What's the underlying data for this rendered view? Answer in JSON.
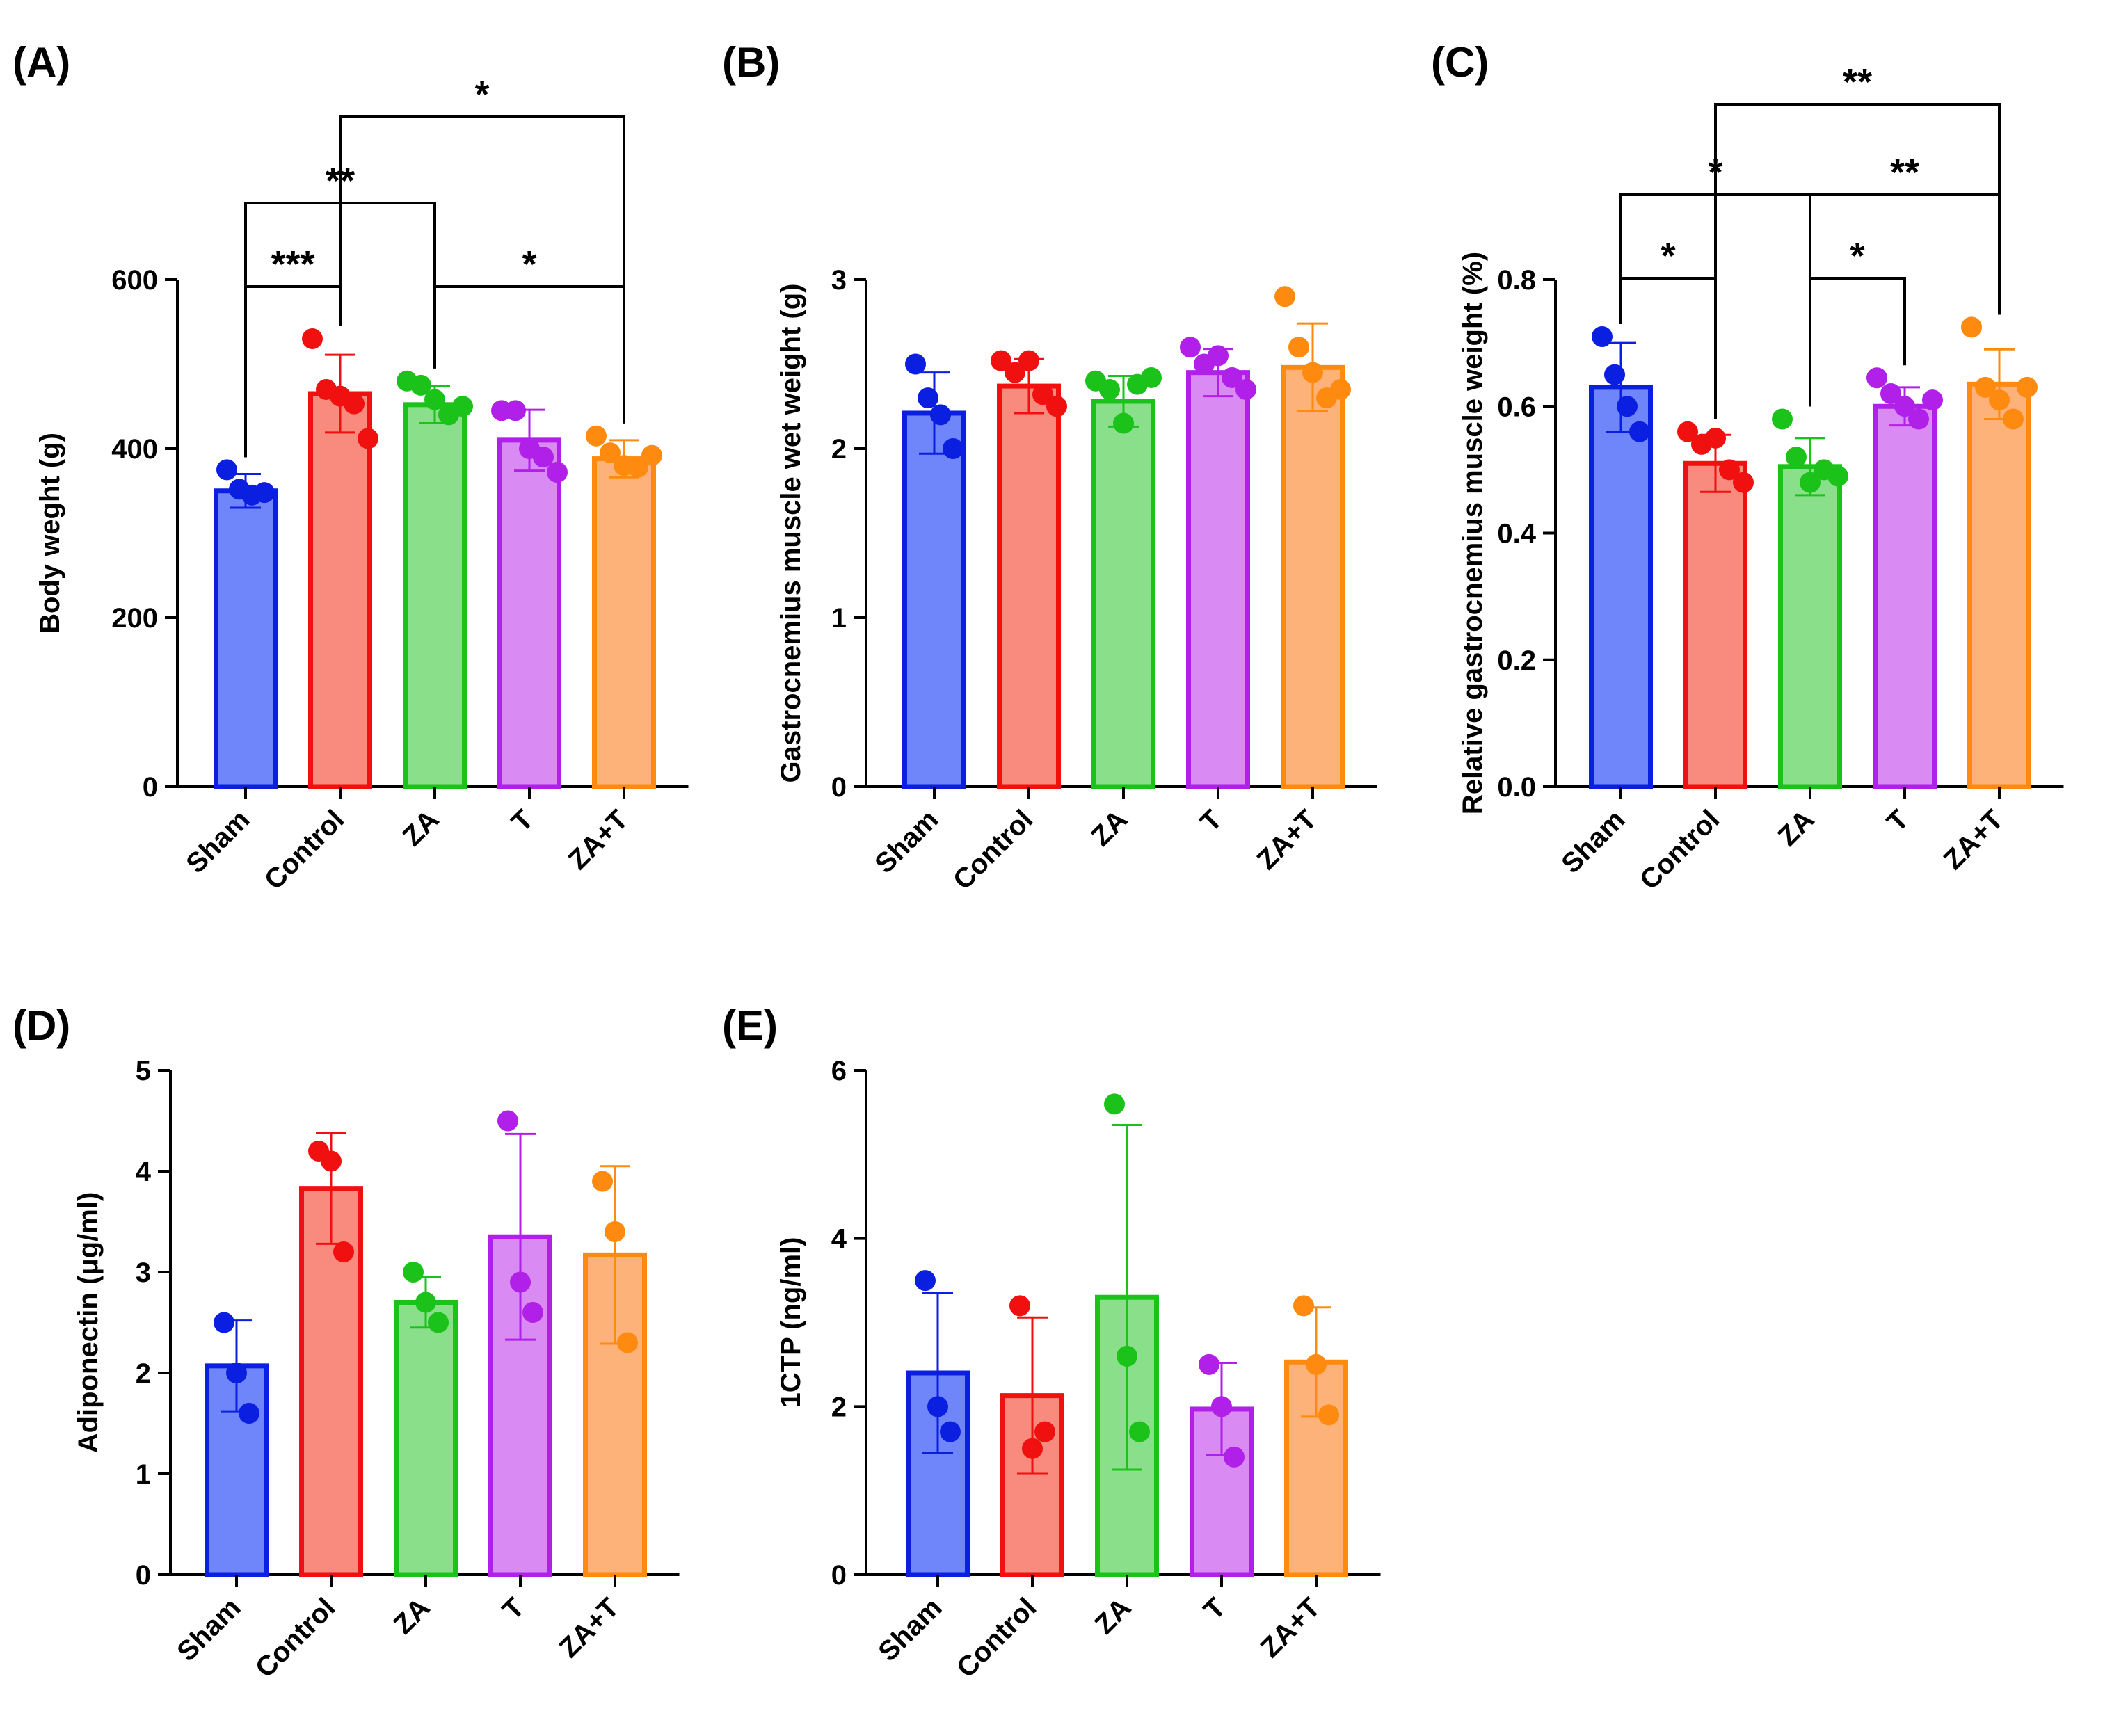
{
  "colors": {
    "Sham": {
      "stroke": "#0b1fe0",
      "fill": "#6f86fb"
    },
    "Control": {
      "stroke": "#f01010",
      "fill": "#f98a7e"
    },
    "ZA": {
      "stroke": "#1ac21a",
      "fill": "#8ae08a"
    },
    "T": {
      "stroke": "#b020e8",
      "fill": "#d98af3"
    },
    "ZA+T": {
      "stroke": "#ff8a10",
      "fill": "#fdb27a"
    }
  },
  "chart_data": [
    {
      "id": "A",
      "panel_label": "(A)",
      "type": "bar",
      "ylabel": "Body weght (g)",
      "ylim": [
        0,
        600
      ],
      "yticks": [
        0,
        200,
        400,
        600
      ],
      "tick_labels": [
        "0",
        "200",
        "400",
        "600"
      ],
      "categories": [
        "Sham",
        "Control",
        "ZA",
        "T",
        "ZA+T"
      ],
      "values": [
        350,
        465,
        452,
        410,
        388
      ],
      "errors": [
        20,
        46,
        22,
        36,
        22
      ],
      "points": [
        [
          375,
          352,
          345,
          348
        ],
        [
          530,
          470,
          462,
          453,
          412
        ],
        [
          480,
          475,
          458,
          440,
          450
        ],
        [
          445,
          445,
          400,
          390,
          372
        ],
        [
          415,
          395,
          380,
          378,
          392
        ]
      ],
      "significance": [
        {
          "from": 0,
          "to": 1,
          "level": 1,
          "label": "***"
        },
        {
          "from": 2,
          "to": 4,
          "level": 1,
          "label": "*"
        },
        {
          "from": 0,
          "to": 2,
          "level": 2,
          "label": "**"
        },
        {
          "from": 1,
          "to": 4,
          "level": 3,
          "label": "*"
        }
      ]
    },
    {
      "id": "B",
      "panel_label": "(B)",
      "type": "bar",
      "ylabel": "Gastrocnemius muscle wet weight (g)",
      "ylim": [
        0,
        3
      ],
      "yticks": [
        0,
        1,
        2,
        3
      ],
      "tick_labels": [
        "0",
        "1",
        "2",
        "3"
      ],
      "categories": [
        "Sham",
        "Control",
        "ZA",
        "T",
        "ZA+T"
      ],
      "values": [
        2.21,
        2.37,
        2.28,
        2.45,
        2.48
      ],
      "errors": [
        0.24,
        0.16,
        0.15,
        0.14,
        0.26
      ],
      "points": [
        [
          2.5,
          2.3,
          2.2,
          2.0
        ],
        [
          2.52,
          2.45,
          2.52,
          2.32,
          2.25
        ],
        [
          2.4,
          2.35,
          2.15,
          2.38,
          2.42
        ],
        [
          2.6,
          2.5,
          2.55,
          2.42,
          2.35
        ],
        [
          2.9,
          2.6,
          2.45,
          2.3,
          2.35
        ]
      ],
      "significance": []
    },
    {
      "id": "C",
      "panel_label": "(C)",
      "type": "bar",
      "ylabel": "Relative gastrocnemius muscle weight (%)",
      "ylim": [
        0,
        0.8
      ],
      "yticks": [
        0,
        0.2,
        0.4,
        0.6,
        0.8
      ],
      "tick_labels": [
        "0.0",
        "0.2",
        "0.4",
        "0.6",
        "0.8"
      ],
      "categories": [
        "Sham",
        "Control",
        "ZA",
        "T",
        "ZA+T"
      ],
      "values": [
        0.63,
        0.51,
        0.505,
        0.6,
        0.635
      ],
      "errors": [
        0.07,
        0.045,
        0.045,
        0.03,
        0.055
      ],
      "points": [
        [
          0.71,
          0.65,
          0.6,
          0.56
        ],
        [
          0.56,
          0.54,
          0.55,
          0.5,
          0.48
        ],
        [
          0.58,
          0.52,
          0.48,
          0.5,
          0.49
        ],
        [
          0.645,
          0.62,
          0.6,
          0.58,
          0.61
        ],
        [
          0.725,
          0.63,
          0.61,
          0.58,
          0.63
        ]
      ],
      "significance": [
        {
          "from": 0,
          "to": 1,
          "level": 1,
          "label": "*"
        },
        {
          "from": 2,
          "to": 3,
          "level": 1,
          "label": "*"
        },
        {
          "from": 0,
          "to": 2,
          "level": 2,
          "label": "*"
        },
        {
          "from": 2,
          "to": 4,
          "level": 2,
          "label": "**"
        },
        {
          "from": 1,
          "to": 4,
          "level": 3,
          "label": "**"
        }
      ]
    },
    {
      "id": "D",
      "panel_label": "(D)",
      "type": "bar",
      "ylabel": "Adiponectin (μg/ml)",
      "ylim": [
        0,
        5
      ],
      "yticks": [
        0,
        1,
        2,
        3,
        4,
        5
      ],
      "tick_labels": [
        "0",
        "1",
        "2",
        "3",
        "4",
        "5"
      ],
      "categories": [
        "Sham",
        "Control",
        "ZA",
        "T",
        "ZA+T"
      ],
      "values": [
        2.07,
        3.83,
        2.7,
        3.35,
        3.17
      ],
      "errors": [
        0.45,
        0.55,
        0.25,
        1.02,
        0.88
      ],
      "points": [
        [
          2.5,
          2.0,
          1.6
        ],
        [
          4.2,
          4.1,
          3.2
        ],
        [
          3.0,
          2.7,
          2.5
        ],
        [
          4.5,
          2.9,
          2.6
        ],
        [
          3.9,
          3.4,
          2.3
        ]
      ],
      "significance": []
    },
    {
      "id": "E",
      "panel_label": "(E)",
      "type": "bar",
      "ylabel": "1CTP (ng/ml)",
      "ylim": [
        0,
        6
      ],
      "yticks": [
        0,
        2,
        4,
        6
      ],
      "tick_labels": [
        "0",
        "2",
        "4",
        "6"
      ],
      "categories": [
        "Sham",
        "Control",
        "ZA",
        "T",
        "ZA+T"
      ],
      "values": [
        2.4,
        2.13,
        3.3,
        1.97,
        2.53
      ],
      "errors": [
        0.95,
        0.93,
        2.05,
        0.55,
        0.65
      ],
      "points": [
        [
          3.5,
          2.0,
          1.7
        ],
        [
          3.2,
          1.5,
          1.7
        ],
        [
          5.6,
          2.6,
          1.7
        ],
        [
          2.5,
          2.0,
          1.4
        ],
        [
          3.2,
          2.5,
          1.9
        ]
      ],
      "significance": []
    }
  ]
}
